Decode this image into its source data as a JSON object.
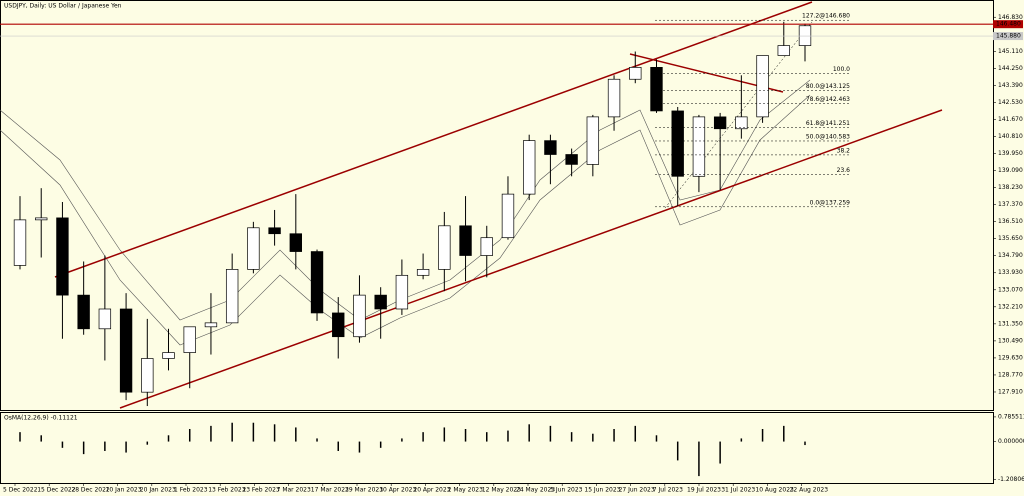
{
  "chart_data": {
    "type": "candlestick",
    "title": "USDJPY, Daily:  US Dollar / Japanese Yen",
    "background": "#fdfde4",
    "up_color": "#ffffff",
    "down_color": "#000000",
    "open": [
      134.3,
      136.6,
      136.7,
      132.8,
      131.1,
      132.1,
      127.9,
      129.6,
      129.9,
      131.2,
      131.4,
      134.1,
      136.2,
      135.9,
      135.0,
      131.9,
      130.7,
      132.8,
      132.1,
      133.8,
      134.1,
      136.3,
      134.8,
      135.7,
      137.9,
      140.6,
      139.9,
      139.4,
      141.8,
      143.7,
      144.3,
      142.1,
      138.8,
      141.8,
      141.2,
      141.8,
      144.9,
      145.4
    ],
    "high": [
      137.8,
      138.2,
      137.5,
      134.5,
      134.8,
      132.9,
      131.6,
      131.1,
      131.2,
      132.9,
      134.9,
      136.5,
      137.1,
      137.9,
      135.1,
      132.7,
      133.8,
      133.2,
      134.6,
      134.9,
      137.0,
      137.8,
      136.3,
      138.8,
      140.9,
      140.9,
      140.2,
      141.9,
      143.9,
      145.1,
      144.7,
      142.3,
      141.9,
      142.0,
      143.9,
      144.9,
      146.6,
      146.5
    ],
    "low": [
      134.1,
      134.7,
      130.6,
      130.8,
      129.5,
      127.5,
      127.2,
      129.0,
      128.1,
      129.8,
      131.5,
      133.9,
      135.3,
      134.1,
      131.5,
      129.6,
      130.4,
      130.6,
      131.8,
      133.6,
      133.0,
      133.5,
      133.7,
      135.6,
      137.6,
      138.4,
      138.8,
      138.8,
      141.1,
      143.5,
      142.0,
      137.3,
      138.0,
      138.1,
      140.7,
      141.5,
      144.9,
      144.6
    ],
    "close": [
      136.6,
      136.7,
      132.8,
      131.1,
      132.1,
      127.9,
      129.6,
      129.9,
      131.2,
      131.4,
      134.1,
      136.2,
      135.9,
      135.0,
      131.9,
      130.7,
      132.8,
      132.1,
      133.8,
      134.1,
      136.3,
      134.8,
      135.7,
      137.9,
      140.6,
      139.9,
      139.4,
      141.8,
      143.7,
      144.3,
      142.1,
      138.8,
      141.8,
      141.2,
      141.8,
      144.9,
      145.4,
      146.4
    ],
    "ylim": [
      127.0,
      147.6
    ],
    "yticks": [
      {
        "value": 146.83,
        "label": "146.830"
      },
      {
        "value": 145.11,
        "label": "145.110"
      },
      {
        "value": 144.25,
        "label": "144.250"
      },
      {
        "value": 143.39,
        "label": "143.390"
      },
      {
        "value": 142.53,
        "label": "142.530"
      },
      {
        "value": 141.67,
        "label": "141.670"
      },
      {
        "value": 140.81,
        "label": "140.810"
      },
      {
        "value": 139.95,
        "label": "139.950"
      },
      {
        "value": 139.09,
        "label": "139.090"
      },
      {
        "value": 138.23,
        "label": "138.230"
      },
      {
        "value": 137.37,
        "label": "137.370"
      },
      {
        "value": 136.51,
        "label": "136.510"
      },
      {
        "value": 135.65,
        "label": "135.650"
      },
      {
        "value": 134.79,
        "label": "134.790"
      },
      {
        "value": 133.93,
        "label": "133.930"
      },
      {
        "value": 133.07,
        "label": "133.070"
      },
      {
        "value": 132.21,
        "label": "132.210"
      },
      {
        "value": 131.35,
        "label": "131.350"
      },
      {
        "value": 130.49,
        "label": "130.490"
      },
      {
        "value": 129.63,
        "label": "129.630"
      },
      {
        "value": 128.77,
        "label": "128.770"
      },
      {
        "value": 127.91,
        "label": "127.910"
      }
    ],
    "price_labels": [
      {
        "value": 146.48,
        "label": "146.480",
        "color": "#b00000"
      },
      {
        "value": 145.88,
        "label": "145.880",
        "color": "#c8c8c8"
      }
    ],
    "fib_levels": [
      {
        "value": 146.68,
        "label": "127.2@146.680"
      },
      {
        "value": 143.98,
        "label": "100.0"
      },
      {
        "value": 143.125,
        "label": "80.0@143.125"
      },
      {
        "value": 142.463,
        "label": "78.6@142.463"
      },
      {
        "value": 141.251,
        "label": "61.8@141.251"
      },
      {
        "value": 140.583,
        "label": "50.0@140.583"
      },
      {
        "value": 139.88,
        "label": "38.2"
      },
      {
        "value": 138.88,
        "label": "23.6"
      },
      {
        "value": 137.259,
        "label": "0.0@137.259"
      }
    ],
    "xticks": [
      "5 Dec 2022",
      "15 Dec 2022",
      "28 Dec 2022",
      "10 Jan 2023",
      "20 Jan 2023",
      "1 Feb 2023",
      "13 Feb 2023",
      "23 Feb 2023",
      "7 Mar 2023",
      "17 Mar 2023",
      "29 Mar 2023",
      "10 Apr 2023",
      "20 Apr 2023",
      "2 May 2023",
      "12 May 2023",
      "24 May 2023",
      "5 Jun 2023",
      "15 Jun 2023",
      "27 Jun 2023",
      "7 Jul 2023",
      "19 Jul 2023",
      "31 Jul 2023",
      "10 Aug 2023",
      "22 Aug 2023"
    ],
    "indicator": {
      "type": "histogram",
      "title": "OsMA(12,26,9) -0.11121",
      "color": "#000000",
      "values": [
        0.3,
        0.2,
        -0.2,
        -0.4,
        -0.3,
        -0.35,
        -0.1,
        0.2,
        0.4,
        0.5,
        0.6,
        0.6,
        0.55,
        0.45,
        0.1,
        -0.3,
        -0.35,
        -0.2,
        0.1,
        0.3,
        0.45,
        0.4,
        0.3,
        0.35,
        0.55,
        0.5,
        0.3,
        0.25,
        0.4,
        0.5,
        0.2,
        -0.6,
        -1.1,
        -0.7,
        0.1,
        0.4,
        0.5,
        -0.11121
      ],
      "ylim": [
        -1.32,
        0.91
      ],
      "yticks": [
        0.785511,
        {
          "value": 0,
          "label": "0.000000"
        },
        -1.20806
      ]
    }
  }
}
